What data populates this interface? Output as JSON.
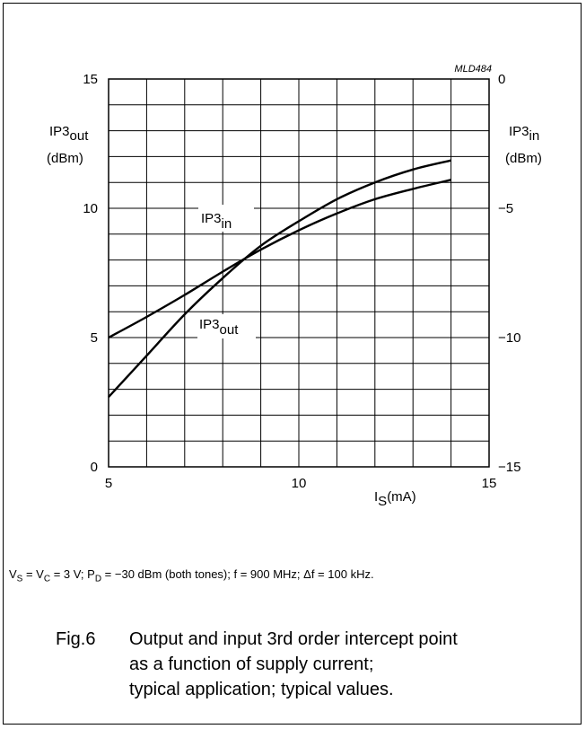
{
  "chart_data": {
    "type": "line",
    "figure_code": "MLD484",
    "xlabel": {
      "main": "I",
      "sub": "S",
      "unit": "(mA)"
    },
    "x_ticks": [
      "5",
      "10",
      "15"
    ],
    "xlim": [
      5,
      15
    ],
    "ylabel_left": {
      "main": "IP3",
      "sub": "out",
      "unit": "(dBm)"
    },
    "y_left_ticks": [
      "0",
      "5",
      "10",
      "15"
    ],
    "ylim_left": [
      0,
      15
    ],
    "ylabel_right": {
      "main": "IP3",
      "sub": "in",
      "unit": "(dBm)"
    },
    "y_right_ticks": [
      "−15",
      "−10",
      "−5",
      "0"
    ],
    "ylim_right": [
      -15,
      0
    ],
    "grid": true,
    "series": [
      {
        "name": "IP3",
        "name_sub": "in",
        "axis": "right",
        "x": [
          5,
          6,
          7,
          8,
          9,
          10,
          11,
          12,
          13,
          14
        ],
        "y": [
          -10.0,
          -9.2,
          -8.35,
          -7.45,
          -6.6,
          -5.85,
          -5.2,
          -4.65,
          -4.25,
          -3.9
        ]
      },
      {
        "name": "IP3",
        "name_sub": "out",
        "axis": "left",
        "x": [
          5,
          6,
          7,
          8,
          9,
          10,
          11,
          12,
          13,
          14
        ],
        "y": [
          2.7,
          4.3,
          5.9,
          7.3,
          8.55,
          9.5,
          10.35,
          11.0,
          11.5,
          11.85
        ]
      }
    ]
  },
  "conditions": {
    "vs_main": "V",
    "vs_sub": "S",
    "eq1": " = ",
    "vc_main": "V",
    "vc_sub": "C",
    "eq2": " = 3 V; ",
    "pd_main": "P",
    "pd_sub": "D",
    "rest": " = −30 dBm (both tones); f = 900 MHz; Δf = 100 kHz."
  },
  "caption": {
    "number": "Fig.6",
    "lines": [
      "Output and input 3rd order intercept point",
      "as a function of supply current;",
      "typical application; typical values."
    ]
  }
}
